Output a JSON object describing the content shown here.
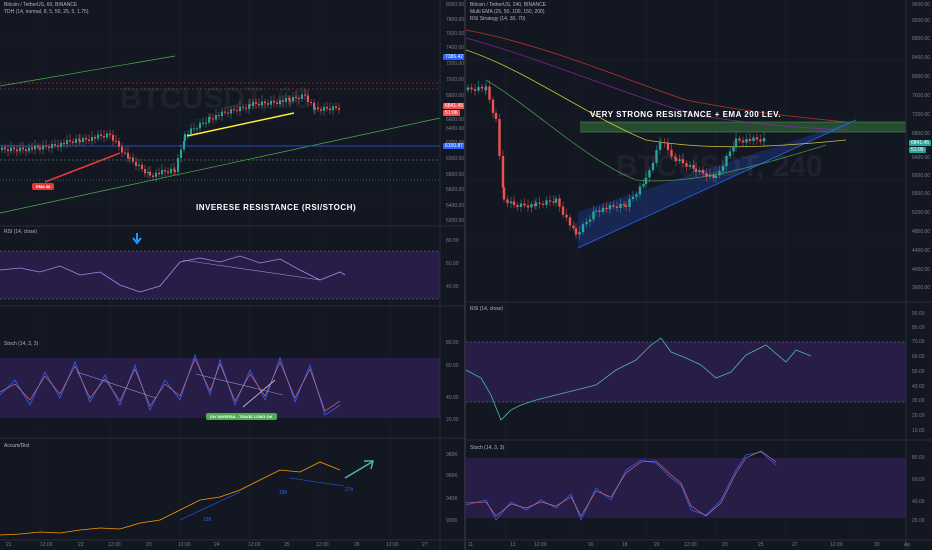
{
  "left": {
    "title": "Bitcoin / TetherUS, 60, BINANCE",
    "indicator": "TDH (14, normal, 8, 5, 50, 25, 5, 1.75)",
    "watermark": "BTCUSDT, 60",
    "annotation": "INVERESE RESISTANCE (RSI/STOCH)",
    "ema_badge": "EMA 88",
    "price_axis": [
      "8000.00",
      "7800.00",
      "7600.00",
      "7400.00",
      "7200.00",
      "7000.00",
      "6800.00",
      "6600.00",
      "6400.00",
      "6200.00",
      "6000.00",
      "5800.00",
      "5600.00",
      "5400.00",
      "5200.00"
    ],
    "price_labels": {
      "top": "7386.42",
      "mid": "6841.45",
      "mid2": "51:06",
      "low": "6150.87"
    },
    "rsi_title": "RSI (14, close)",
    "rsi_axis": [
      "80.00",
      "60.00",
      "40.00"
    ],
    "stoch_title": "Stoch (14, 3, 3)",
    "stoch_axis": [
      "80.00",
      "60.00",
      "40.00",
      "20.00"
    ],
    "stoch_badge": "DIV INVERSA - TRADE LONG OK",
    "accum_title": "Accum/Dist",
    "accum_axis": [
      "980K",
      "960K",
      "940K",
      "920K"
    ],
    "accum_marks": [
      "22h",
      "18h",
      "27h"
    ],
    "time_axis": [
      "21",
      "12:00",
      "22",
      "12:00",
      "23",
      "12:00",
      "24",
      "12:00",
      "25",
      "12:00",
      "26",
      "12:00",
      "27"
    ]
  },
  "right": {
    "title": "Bitcoin / TetherUS, 240, BINANCE",
    "indicator": "Multi EMA (25, 50, 100, 150, 200)",
    "indicator2": "RSI Strategy (14, 30, 70)",
    "watermark": "BTCUSDT, 240",
    "annotation": "VERY STRONG RESISTANCE + EMA 200 LEV.",
    "price_axis": [
      "9600.00",
      "9200.00",
      "8800.00",
      "8400.00",
      "8000.00",
      "7600.00",
      "7200.00",
      "6800.00",
      "6400.00",
      "6000.00",
      "5600.00",
      "5200.00",
      "4800.00",
      "4400.00",
      "4000.00",
      "3600.00"
    ],
    "price_labels": {
      "mid": "6841.45",
      "mid2": "51:06"
    },
    "rsi_title": "RSI (14, close)",
    "rsi_axis": [
      "90.00",
      "80.00",
      "70.00",
      "60.00",
      "50.00",
      "40.00",
      "30.00",
      "20.00",
      "10.00"
    ],
    "stoch_title": "Stoch (14, 3, 3)",
    "stoch_axis": [
      "80.00",
      "60.00",
      "40.00",
      "20.00"
    ],
    "time_axis": [
      "11",
      "13",
      "12:00",
      "16",
      "18",
      "20",
      "12:00",
      "23",
      "25",
      "27",
      "12:00",
      "30",
      "Ap"
    ]
  },
  "colors": {
    "bg": "#131722",
    "up": "#26a69a",
    "down": "#ef5350",
    "purple": "#2a1e4a",
    "green": "#4caf50",
    "red": "#e53935",
    "blue": "#2962ff"
  }
}
